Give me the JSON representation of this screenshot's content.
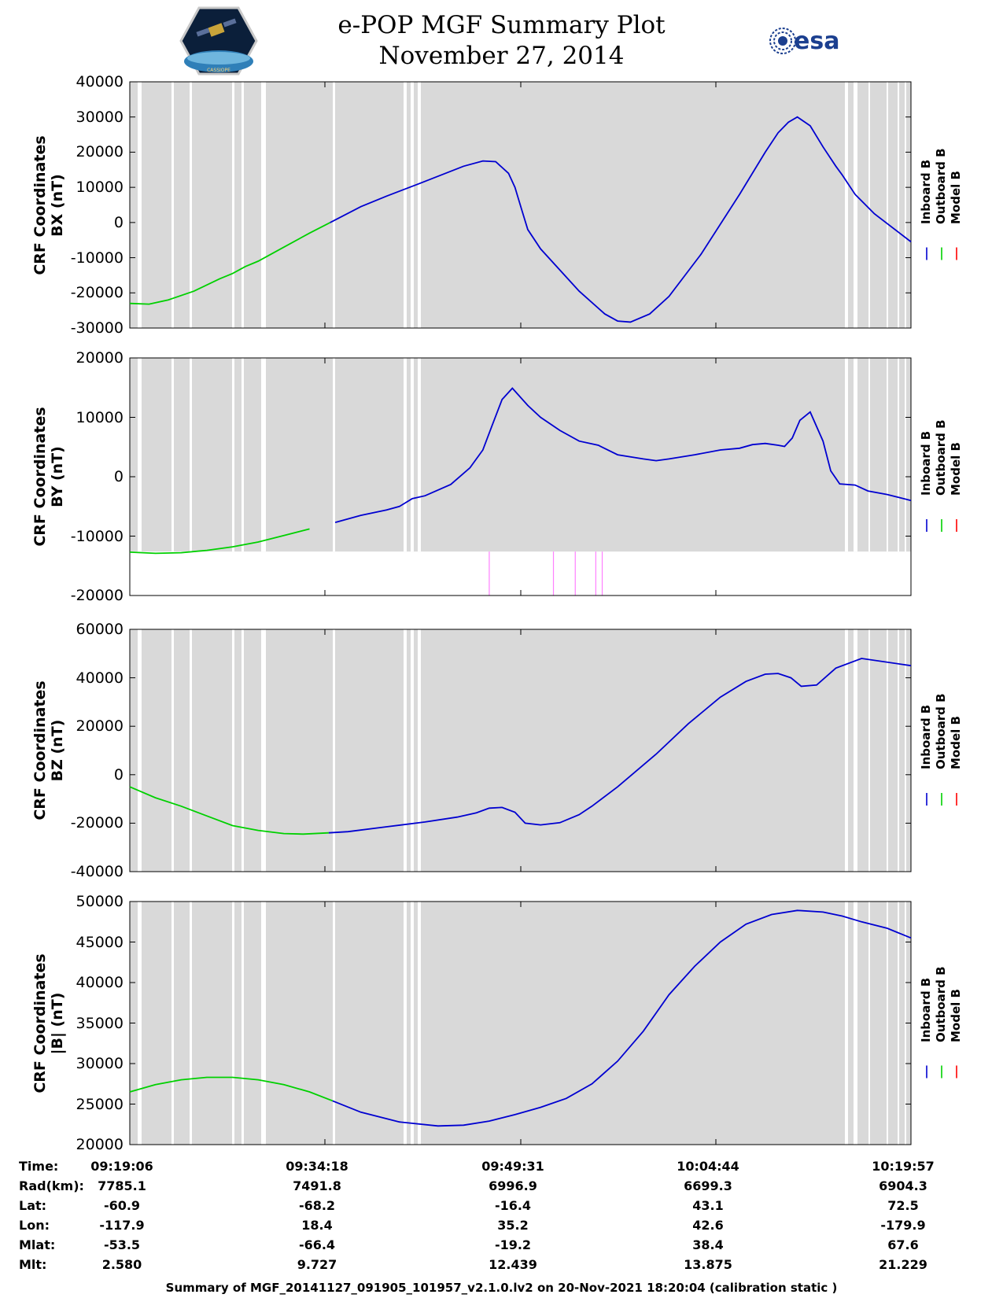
{
  "header": {
    "title": "e-POP MGF Summary Plot",
    "date": "November 27, 2014",
    "left_logo": "cassiope-mission-patch-icon",
    "right_logo_text": "esa"
  },
  "legend": {
    "inboard": "Inboard B",
    "outboard": "Outboard B",
    "model": "Model B"
  },
  "colors": {
    "inboard": "#0000d0",
    "outboard": "#00d000",
    "model": "#ff0000",
    "gaps": "#ffffff",
    "panel_bg": "#d9d9d9",
    "event_marks": "#ff80ff"
  },
  "chart_data": [
    {
      "type": "line",
      "ylabel": [
        "CRF Coordinates",
        "BX (nT)"
      ],
      "ylim": [
        -30000,
        40000
      ],
      "yticks": [
        -30000,
        -20000,
        -10000,
        0,
        10000,
        20000,
        30000,
        40000
      ],
      "x_unit": "minutes after 09:19:06",
      "xlim": [
        0,
        60.85
      ],
      "switch_x": 15.6,
      "series": {
        "name": "Inboard B / Outboard B",
        "x": [
          0,
          1.5,
          3,
          5,
          7,
          8,
          9,
          10,
          12,
          14,
          15.6,
          18,
          20,
          22.5,
          26,
          27.5,
          28.5,
          29.5,
          30,
          30.5,
          31,
          32,
          35,
          37,
          38,
          39,
          40.5,
          42,
          44.5,
          47.5,
          49.5,
          50.5,
          51.3,
          52,
          53,
          54,
          55,
          55.5,
          56.5,
          58,
          60.85
        ],
        "y": [
          -23000,
          -23200,
          -22000,
          -19500,
          -16000,
          -14500,
          -12500,
          -11000,
          -7000,
          -3000,
          0,
          4500,
          7500,
          11000,
          16000,
          17500,
          17300,
          14000,
          10000,
          4000,
          -2000,
          -7500,
          -19500,
          -26000,
          -28000,
          -28300,
          -26000,
          -21000,
          -9000,
          8000,
          20000,
          25500,
          28500,
          30000,
          27500,
          21500,
          16000,
          13500,
          8000,
          2500,
          -5500
        ]
      }
    },
    {
      "type": "line",
      "ylabel": [
        "CRF Coordinates",
        "BY (nT)"
      ],
      "ylim": [
        -20000,
        20000
      ],
      "yticks": [
        -20000,
        -10000,
        0,
        10000,
        20000
      ],
      "x_unit": "minutes after 09:19:06",
      "xlim": [
        0,
        60.85
      ],
      "switch_x": 15.8,
      "event_marks_x": [
        28.0,
        33.0,
        34.7,
        36.3,
        36.8
      ],
      "series": {
        "name": "Inboard B / Outboard B",
        "x": [
          0,
          2,
          4,
          6,
          8,
          10,
          12,
          14,
          16,
          18,
          20,
          21,
          22,
          23,
          25,
          26.5,
          27.5,
          28.2,
          29,
          29.8,
          30.3,
          31,
          32,
          33.5,
          35,
          36.5,
          38,
          40,
          41,
          42,
          44,
          46,
          47.5,
          48.5,
          49.5,
          50.5,
          51,
          51.6,
          52.2,
          53,
          54,
          54.6,
          55.3,
          56.5,
          57.5,
          59,
          60.85
        ],
        "y": [
          -12700,
          -12900,
          -12800,
          -12400,
          -11800,
          -11000,
          -9900,
          -8800,
          -7700,
          -6500,
          -5600,
          -5000,
          -3700,
          -3200,
          -1300,
          1500,
          4500,
          8500,
          13000,
          14900,
          13700,
          12000,
          10000,
          7800,
          6000,
          5300,
          3700,
          3000,
          2700,
          3000,
          3700,
          4500,
          4800,
          5400,
          5600,
          5300,
          5100,
          6500,
          9500,
          10900,
          6000,
          1000,
          -1200,
          -1400,
          -2400,
          -3000,
          -4000
        ]
      }
    },
    {
      "type": "line",
      "ylabel": [
        "CRF Coordinates",
        "BZ (nT)"
      ],
      "ylim": [
        -40000,
        60000
      ],
      "yticks": [
        -40000,
        -20000,
        0,
        20000,
        40000,
        60000
      ],
      "x_unit": "minutes after 09:19:06",
      "xlim": [
        0,
        60.85
      ],
      "switch_x": 15.5,
      "series": {
        "name": "Inboard B / Outboard B",
        "x": [
          0,
          2,
          4,
          6,
          8,
          10,
          12,
          13.5,
          15.5,
          17,
          20,
          23,
          25.5,
          27,
          28,
          29,
          30,
          30.8,
          32,
          33.5,
          35,
          36,
          38,
          41,
          43.5,
          46,
          48,
          49.5,
          50.5,
          51.5,
          52.3,
          53.5,
          55,
          57,
          60.85
        ],
        "y": [
          -5000,
          -9500,
          -13000,
          -17000,
          -21000,
          -23000,
          -24300,
          -24500,
          -24000,
          -23500,
          -21500,
          -19500,
          -17500,
          -15700,
          -13800,
          -13500,
          -15500,
          -20000,
          -20700,
          -19800,
          -16500,
          -13000,
          -5000,
          8500,
          21000,
          32000,
          38500,
          41500,
          41800,
          40000,
          36500,
          37000,
          44000,
          48000,
          45000
        ]
      }
    },
    {
      "type": "line",
      "ylabel": [
        "CRF Coordinates",
        "|B| (nT)"
      ],
      "ylim": [
        20000,
        50000
      ],
      "yticks": [
        20000,
        25000,
        30000,
        35000,
        40000,
        45000,
        50000
      ],
      "x_unit": "minutes after 09:19:06",
      "xlim": [
        0,
        60.85
      ],
      "switch_x": 15.8,
      "series": {
        "name": "Inboard B / Outboard B",
        "x": [
          0,
          2,
          4,
          6,
          8,
          10,
          12,
          14,
          15.8,
          18,
          21,
          24,
          26,
          28,
          30,
          32,
          34,
          36,
          38,
          40,
          42,
          44,
          46,
          48,
          50,
          52,
          54,
          55.5,
          57,
          59,
          60.85
        ],
        "y": [
          26500,
          27400,
          28000,
          28300,
          28300,
          28000,
          27400,
          26500,
          25400,
          24000,
          22800,
          22300,
          22400,
          22900,
          23700,
          24600,
          25700,
          27500,
          30300,
          34000,
          38500,
          42000,
          45000,
          47200,
          48400,
          48900,
          48700,
          48200,
          47500,
          46700,
          45500
        ]
      }
    }
  ],
  "footer_table": {
    "labels": [
      "Time:",
      "Rad(km):",
      "Lat:",
      "Lon:",
      "Mlat:",
      "Mlt:"
    ],
    "columns": [
      [
        "09:19:06",
        "7785.1",
        "-60.9",
        "-117.9",
        "-53.5",
        "2.580"
      ],
      [
        "09:34:18",
        "7491.8",
        "-68.2",
        "18.4",
        "-66.4",
        "9.727"
      ],
      [
        "09:49:31",
        "6996.9",
        "-16.4",
        "35.2",
        "-19.2",
        "12.439"
      ],
      [
        "10:04:44",
        "6699.3",
        "43.1",
        "42.6",
        "38.4",
        "13.875"
      ],
      [
        "10:19:57",
        "6904.3",
        "72.5",
        "-179.9",
        "67.6",
        "21.229"
      ]
    ]
  },
  "footer": "Summary of MGF_20141127_091905_101957_v2.1.0.lv2 on 20-Nov-2021 18:20:04 (calibration static )"
}
